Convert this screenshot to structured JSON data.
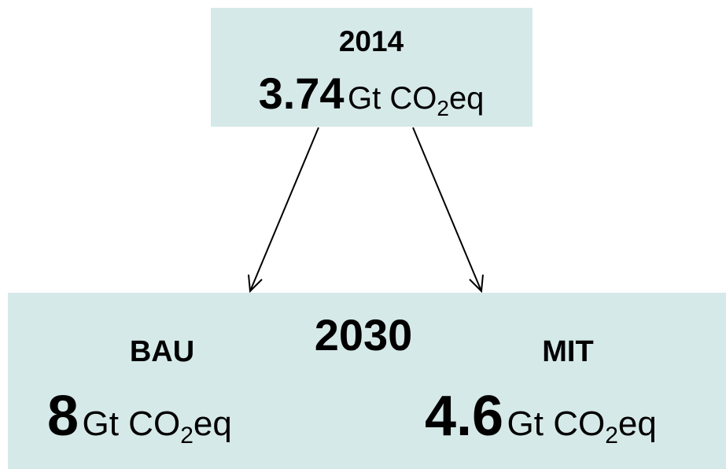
{
  "nodes": [
    {
      "label": "2014",
      "value": "3.74",
      "unit": {
        "text": "Gt CO",
        "subscript": "2",
        "suffix": "eq"
      }
    },
    {
      "label": "2030",
      "scenarios": [
        {
          "label": "BAU",
          "value": "8",
          "unit": {
            "text": "Gt CO",
            "subscript": "2",
            "suffix": "eq"
          }
        },
        {
          "label": "MIT",
          "value": "4.6",
          "unit": {
            "text": "Gt CO",
            "subscript": "2",
            "suffix": "eq"
          }
        }
      ]
    }
  ]
}
